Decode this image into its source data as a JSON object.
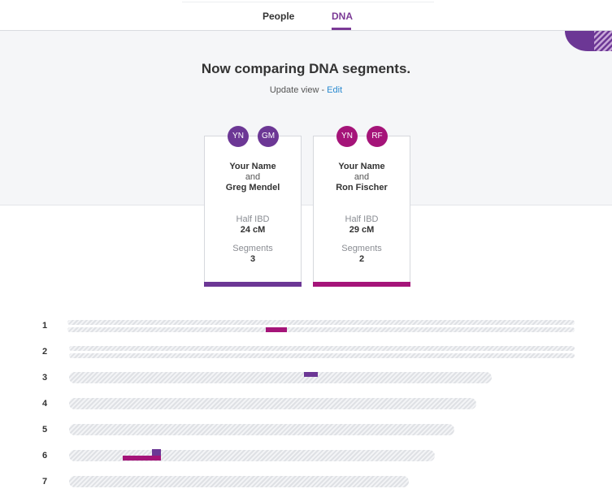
{
  "tabs": [
    {
      "label": "People",
      "active": false
    },
    {
      "label": "DNA",
      "active": true
    }
  ],
  "headline": "Now comparing DNA segments.",
  "update": {
    "prefix": "Update view - ",
    "edit_label": "Edit"
  },
  "colors": {
    "purple": "#6c3795",
    "magenta": "#a51479",
    "link": "#2a8ad0"
  },
  "cards": [
    {
      "initials_a": "YN",
      "initials_b": "GM",
      "name_a": "Your Name",
      "joiner": "and",
      "name_b": "Greg Mendel",
      "ibd_label": "Half IBD",
      "ibd_value": "24 cM",
      "segments_label": "Segments",
      "segments_value": "3",
      "color": "purple"
    },
    {
      "initials_a": "YN",
      "initials_b": "RF",
      "name_a": "Your Name",
      "joiner": "and",
      "name_b": "Ron Fischer",
      "ibd_label": "Half IBD",
      "ibd_value": "29 cM",
      "segments_label": "Segments",
      "segments_value": "2",
      "color": "magenta"
    }
  ],
  "chromosomes": [
    {
      "number": "1"
    },
    {
      "number": "2"
    },
    {
      "number": "3"
    },
    {
      "number": "4"
    },
    {
      "number": "5"
    },
    {
      "number": "6"
    },
    {
      "number": "7"
    }
  ]
}
